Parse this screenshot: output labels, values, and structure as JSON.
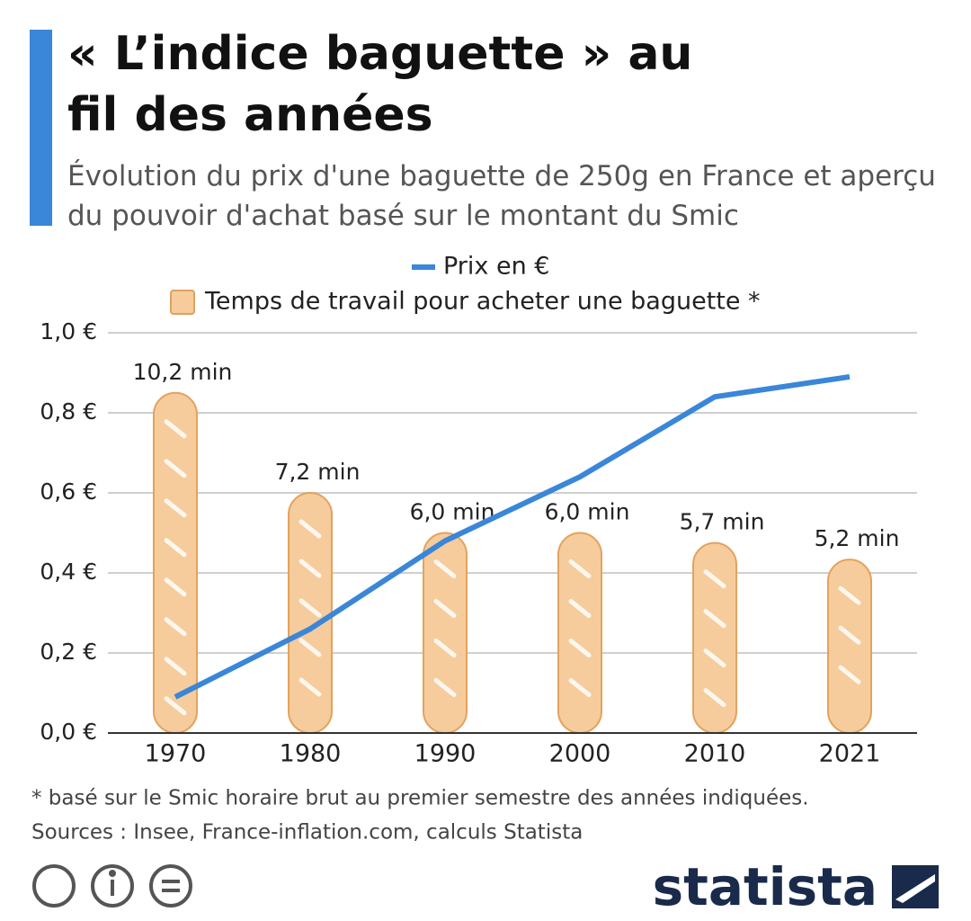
{
  "chart_data": {
    "type": "bar",
    "title": "« L’indice baguette » au fil des années",
    "subtitle": "Évolution du prix d'une baguette de 250g en France et aperçu du pouvoir d'achat basé sur le montant du Smic",
    "categories": [
      "1970",
      "1980",
      "1990",
      "2000",
      "2010",
      "2021"
    ],
    "series": [
      {
        "name": "Prix en €",
        "type": "line",
        "color": "#3a86d8",
        "values": [
          0.09,
          0.26,
          0.48,
          0.64,
          0.84,
          0.89
        ]
      },
      {
        "name": "Temps de travail pour acheter une baguette *",
        "type": "bar",
        "axis": "y2",
        "color": "#f6cc9c",
        "values": [
          10.2,
          7.2,
          6.0,
          6.0,
          5.7,
          5.2
        ],
        "value_labels": [
          "10,2  min",
          "7,2 min",
          "6,0 min",
          "6,0 min",
          "5,7 min",
          "5,2 min"
        ]
      }
    ],
    "ylim": [
      0,
      1
    ],
    "yticks": [
      {
        "value": 0,
        "label": "0,0 €"
      },
      {
        "value": 0.2,
        "label": "0,2 €"
      },
      {
        "value": 0.4,
        "label": "0,4 €"
      },
      {
        "value": 0.6,
        "label": "0,6 €"
      },
      {
        "value": 0.8,
        "label": "0,8 €"
      },
      {
        "value": 1,
        "label": "1,0 €"
      }
    ],
    "y2lim": [
      0,
      12
    ],
    "grid": true,
    "legend": "top",
    "footnote": "* basé sur le Smic horaire brut au premier semestre des années indiquées.",
    "source": "Sources : Insee, France-inflation.com, calculs Statista",
    "brand": "statista"
  }
}
